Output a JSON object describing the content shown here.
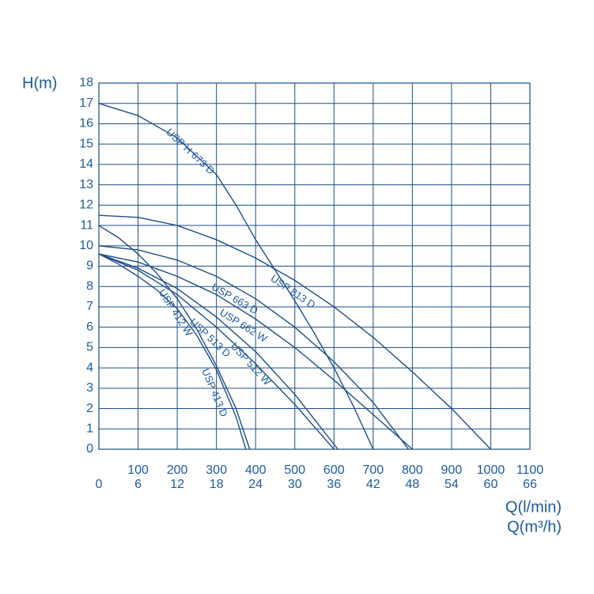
{
  "chart_data": {
    "type": "line",
    "y_label": "H(m)",
    "x_label": "Q(l/min)",
    "x2_label": "Q(m³/h)",
    "color": "#1d4e89",
    "grid": true,
    "xlim": [
      0,
      1100
    ],
    "xticks": [
      0,
      100,
      200,
      300,
      400,
      500,
      600,
      700,
      800,
      900,
      1000,
      1100
    ],
    "x2lim": [
      0,
      66
    ],
    "x2ticks": [
      6,
      12,
      18,
      24,
      30,
      36,
      42,
      48,
      54,
      60,
      66
    ],
    "ylim": [
      0,
      18
    ],
    "yticks": [
      0,
      1,
      2,
      3,
      4,
      5,
      6,
      7,
      8,
      9,
      10,
      11,
      12,
      13,
      14,
      15,
      16,
      17,
      18
    ],
    "series": [
      {
        "name": "USP H 673 D",
        "x": [
          0,
          100,
          200,
          300,
          350,
          400,
          450,
          500,
          550,
          600,
          650,
          700
        ],
        "values": [
          17,
          16.4,
          15.3,
          13.5,
          12,
          10.3,
          8.8,
          7.3,
          5.7,
          4,
          2.1,
          0
        ]
      },
      {
        "name": "USP 813 D",
        "x": [
          0,
          100,
          200,
          300,
          400,
          500,
          600,
          700,
          800,
          900,
          1000
        ],
        "values": [
          11.5,
          11.4,
          11,
          10.3,
          9.4,
          8.3,
          7,
          5.5,
          3.8,
          2,
          0
        ]
      },
      {
        "name": "USP 412 W",
        "x": [
          0,
          50,
          100,
          150,
          200,
          250,
          300,
          350,
          385
        ],
        "values": [
          11,
          10.4,
          9.6,
          8.6,
          7.4,
          5.9,
          4.1,
          2,
          0
        ]
      },
      {
        "name": "USP 413 D",
        "x": [
          0,
          50,
          100,
          150,
          200,
          250,
          300,
          350,
          375
        ],
        "values": [
          9.6,
          9.1,
          8.5,
          7.8,
          6.9,
          5.6,
          3.9,
          1.6,
          0
        ]
      },
      {
        "name": "USP 513 D",
        "x": [
          0,
          100,
          200,
          300,
          400,
          500,
          600
        ],
        "values": [
          9.6,
          8.8,
          7.6,
          6,
          4.2,
          2.2,
          0
        ]
      },
      {
        "name": "USP 512 W",
        "x": [
          0,
          100,
          200,
          300,
          400,
          500,
          610
        ],
        "values": [
          9.6,
          8.9,
          7.9,
          6.5,
          4.8,
          2.7,
          0
        ]
      },
      {
        "name": "USP 663 D",
        "x": [
          0,
          100,
          200,
          300,
          400,
          500,
          600,
          700,
          790
        ],
        "values": [
          10,
          9.8,
          9.3,
          8.5,
          7.4,
          6,
          4.3,
          2.3,
          0
        ]
      },
      {
        "name": "USP 662 W",
        "x": [
          0,
          100,
          200,
          300,
          400,
          500,
          600,
          700,
          800
        ],
        "values": [
          9.6,
          9.2,
          8.5,
          7.6,
          6.4,
          5,
          3.4,
          1.7,
          0
        ]
      }
    ]
  }
}
